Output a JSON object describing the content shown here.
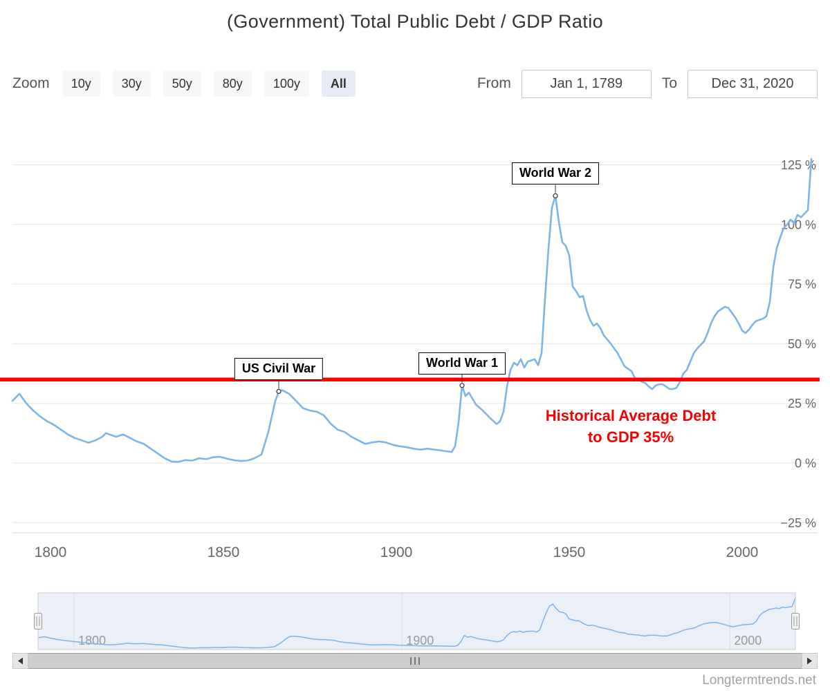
{
  "title": "(Government) Total Public Debt / GDP Ratio",
  "toolbar": {
    "zoom_label": "Zoom",
    "buttons": [
      {
        "label": "10y",
        "selected": false
      },
      {
        "label": "30y",
        "selected": false
      },
      {
        "label": "50y",
        "selected": false
      },
      {
        "label": "80y",
        "selected": false
      },
      {
        "label": "100y",
        "selected": false
      },
      {
        "label": "All",
        "selected": true
      }
    ],
    "from_label": "From",
    "from_value": "Jan 1, 1789",
    "to_label": "To",
    "to_value": "Dec 31, 2020"
  },
  "watermark": "Longtermtrends.net",
  "chart_data": {
    "type": "line",
    "title": "(Government) Total Public Debt / GDP Ratio",
    "xlim": [
      1789,
      2020
    ],
    "ylim": [
      -25,
      130
    ],
    "grid": "horizontal",
    "legend": "none",
    "yaxis_side": "right",
    "yticks": [
      {
        "value": 125,
        "label": "125 %"
      },
      {
        "value": 100,
        "label": "100 %"
      },
      {
        "value": 75,
        "label": "75 %"
      },
      {
        "value": 50,
        "label": "50 %"
      },
      {
        "value": 25,
        "label": "25 %"
      },
      {
        "value": 0,
        "label": "0 %"
      },
      {
        "value": -25,
        "label": "−25 %"
      }
    ],
    "xticks": [
      {
        "value": 1800,
        "label": "1800"
      },
      {
        "value": 1850,
        "label": "1850"
      },
      {
        "value": 1900,
        "label": "1900"
      },
      {
        "value": 1950,
        "label": "1950"
      },
      {
        "value": 2000,
        "label": "2000"
      }
    ],
    "reference_line": {
      "value": 35,
      "color": "#ff0000",
      "label_lines": [
        "Historical Average Debt",
        "to GDP 35%"
      ]
    },
    "annotations": [
      {
        "label": "US Civil War",
        "year": 1866,
        "value": 30
      },
      {
        "label": "World War 1",
        "year": 1919,
        "value": 32.5
      },
      {
        "label": "World War 2",
        "year": 1946,
        "value": 112
      }
    ],
    "series": [
      {
        "name": "Total Public Debt / GDP",
        "color": "#7cb5ec",
        "points": [
          [
            1789,
            26
          ],
          [
            1790,
            27.5
          ],
          [
            1791,
            29
          ],
          [
            1792,
            27
          ],
          [
            1793,
            25
          ],
          [
            1795,
            22
          ],
          [
            1797,
            19.5
          ],
          [
            1799,
            17.5
          ],
          [
            1801,
            16
          ],
          [
            1803,
            14
          ],
          [
            1805,
            12
          ],
          [
            1807,
            10.5
          ],
          [
            1809,
            9.5
          ],
          [
            1811,
            8.5
          ],
          [
            1813,
            9.5
          ],
          [
            1815,
            11
          ],
          [
            1816,
            12.5
          ],
          [
            1817,
            12
          ],
          [
            1819,
            11
          ],
          [
            1821,
            12
          ],
          [
            1823,
            10.5
          ],
          [
            1825,
            9
          ],
          [
            1827,
            8
          ],
          [
            1829,
            6
          ],
          [
            1831,
            4
          ],
          [
            1833,
            2
          ],
          [
            1835,
            0.6
          ],
          [
            1837,
            0.5
          ],
          [
            1839,
            1.2
          ],
          [
            1841,
            1
          ],
          [
            1843,
            2
          ],
          [
            1845,
            1.6
          ],
          [
            1847,
            2.4
          ],
          [
            1849,
            2.6
          ],
          [
            1851,
            1.8
          ],
          [
            1853,
            1.2
          ],
          [
            1855,
            0.8
          ],
          [
            1857,
            1
          ],
          [
            1859,
            2
          ],
          [
            1861,
            3.5
          ],
          [
            1863,
            13
          ],
          [
            1865,
            26
          ],
          [
            1866,
            30
          ],
          [
            1867,
            30.5
          ],
          [
            1869,
            29
          ],
          [
            1871,
            26
          ],
          [
            1873,
            23
          ],
          [
            1875,
            22
          ],
          [
            1877,
            21.5
          ],
          [
            1879,
            20
          ],
          [
            1881,
            16.5
          ],
          [
            1883,
            14
          ],
          [
            1885,
            13
          ],
          [
            1887,
            11
          ],
          [
            1889,
            9.5
          ],
          [
            1891,
            8
          ],
          [
            1893,
            8.6
          ],
          [
            1895,
            9
          ],
          [
            1897,
            8.6
          ],
          [
            1899,
            7.6
          ],
          [
            1901,
            7
          ],
          [
            1903,
            6.6
          ],
          [
            1905,
            6
          ],
          [
            1907,
            5.6
          ],
          [
            1909,
            6
          ],
          [
            1911,
            5.6
          ],
          [
            1913,
            5.2
          ],
          [
            1915,
            4.8
          ],
          [
            1916,
            4.6
          ],
          [
            1917,
            7
          ],
          [
            1918,
            17
          ],
          [
            1919,
            32.5
          ],
          [
            1920,
            28
          ],
          [
            1921,
            29.5
          ],
          [
            1922,
            27
          ],
          [
            1923,
            24.5
          ],
          [
            1925,
            22
          ],
          [
            1927,
            19
          ],
          [
            1929,
            16.3
          ],
          [
            1930,
            17.5
          ],
          [
            1931,
            21.5
          ],
          [
            1932,
            32
          ],
          [
            1933,
            39
          ],
          [
            1934,
            42
          ],
          [
            1935,
            41
          ],
          [
            1936,
            43.5
          ],
          [
            1937,
            40
          ],
          [
            1938,
            42.5
          ],
          [
            1939,
            43
          ],
          [
            1940,
            43.5
          ],
          [
            1941,
            41
          ],
          [
            1942,
            46
          ],
          [
            1943,
            69
          ],
          [
            1944,
            90
          ],
          [
            1945,
            107
          ],
          [
            1946,
            112
          ],
          [
            1947,
            101
          ],
          [
            1948,
            92.5
          ],
          [
            1949,
            91
          ],
          [
            1950,
            87
          ],
          [
            1951,
            74
          ],
          [
            1952,
            72
          ],
          [
            1953,
            69.5
          ],
          [
            1954,
            70
          ],
          [
            1955,
            64
          ],
          [
            1956,
            60
          ],
          [
            1957,
            57.5
          ],
          [
            1958,
            58.5
          ],
          [
            1959,
            56.5
          ],
          [
            1960,
            53.5
          ],
          [
            1962,
            50
          ],
          [
            1964,
            46
          ],
          [
            1966,
            40.5
          ],
          [
            1968,
            38.5
          ],
          [
            1969,
            35.5
          ],
          [
            1970,
            35
          ],
          [
            1971,
            34
          ],
          [
            1972,
            33.5
          ],
          [
            1973,
            32
          ],
          [
            1974,
            31
          ],
          [
            1975,
            32.5
          ],
          [
            1976,
            33
          ],
          [
            1977,
            33
          ],
          [
            1978,
            32
          ],
          [
            1979,
            31
          ],
          [
            1980,
            31
          ],
          [
            1981,
            31.5
          ],
          [
            1982,
            34
          ],
          [
            1983,
            37.5
          ],
          [
            1984,
            39
          ],
          [
            1985,
            42.5
          ],
          [
            1986,
            46
          ],
          [
            1987,
            48
          ],
          [
            1988,
            49.5
          ],
          [
            1989,
            51
          ],
          [
            1990,
            54.5
          ],
          [
            1991,
            58.5
          ],
          [
            1992,
            61.5
          ],
          [
            1993,
            63.5
          ],
          [
            1994,
            64.5
          ],
          [
            1995,
            65.5
          ],
          [
            1996,
            65
          ],
          [
            1997,
            63
          ],
          [
            1998,
            61
          ],
          [
            1999,
            58.5
          ],
          [
            2000,
            55.5
          ],
          [
            2001,
            54.5
          ],
          [
            2002,
            56
          ],
          [
            2003,
            58
          ],
          [
            2004,
            59.5
          ],
          [
            2005,
            60
          ],
          [
            2006,
            60.5
          ],
          [
            2007,
            61.5
          ],
          [
            2008,
            67.5
          ],
          [
            2009,
            82
          ],
          [
            2010,
            90
          ],
          [
            2011,
            94.5
          ],
          [
            2012,
            98.5
          ],
          [
            2013,
            100
          ],
          [
            2014,
            102
          ],
          [
            2015,
            100.5
          ],
          [
            2016,
            104
          ],
          [
            2017,
            103
          ],
          [
            2018,
            104.5
          ],
          [
            2019,
            106
          ],
          [
            2020,
            127.5
          ]
        ]
      }
    ],
    "navigator": {
      "xticks": [
        {
          "value": 1800,
          "label": "1800"
        },
        {
          "value": 1900,
          "label": "1900"
        },
        {
          "value": 2000,
          "label": "2000"
        }
      ]
    }
  }
}
